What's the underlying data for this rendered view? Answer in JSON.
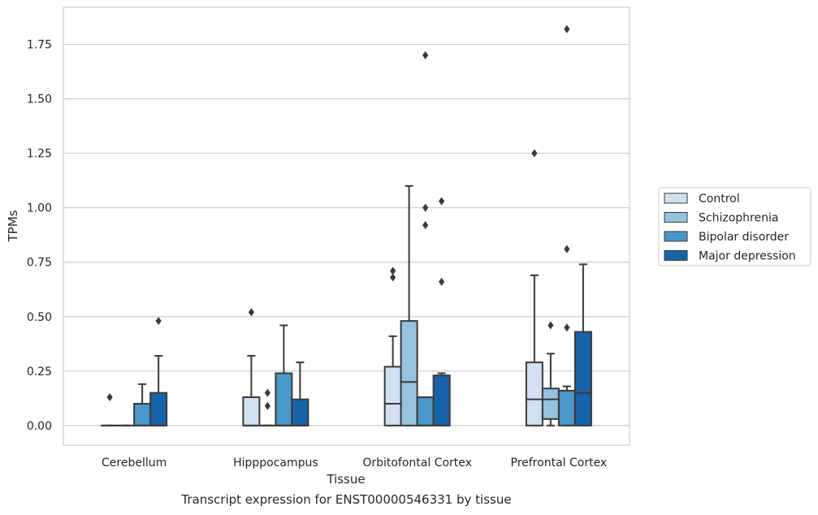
{
  "caption": "Transcript expression for ENST00000546331 by tissue",
  "chart_data": {
    "type": "box",
    "xlabel": "Tissue",
    "ylabel": "TPMs",
    "ylim": [
      -0.09,
      1.92
    ],
    "yticks": [
      "0.00",
      "0.25",
      "0.50",
      "0.75",
      "1.00",
      "1.25",
      "1.50",
      "1.75"
    ],
    "grid": "horizontal",
    "legend_position": "right",
    "categories": [
      "Cerebellum",
      "Hipppocampus",
      "Orbitofontal Cortex",
      "Prefrontal Cortex"
    ],
    "series": [
      {
        "name": "Control",
        "color": "#d0e1f2",
        "boxes": [
          {
            "q1": 0.0,
            "median": 0.0,
            "q3": 0.0,
            "whisker_low": 0.0,
            "whisker_high": 0.0,
            "outliers": [
              0.13
            ]
          },
          {
            "q1": 0.0,
            "median": 0.0,
            "q3": 0.13,
            "whisker_low": 0.0,
            "whisker_high": 0.32,
            "outliers": [
              0.52
            ]
          },
          {
            "q1": 0.0,
            "median": 0.1,
            "q3": 0.27,
            "whisker_low": 0.0,
            "whisker_high": 0.41,
            "outliers": [
              0.68,
              0.71
            ]
          },
          {
            "q1": 0.0,
            "median": 0.12,
            "q3": 0.29,
            "whisker_low": 0.0,
            "whisker_high": 0.69,
            "outliers": [
              1.25
            ]
          }
        ]
      },
      {
        "name": "Schizophrenia",
        "color": "#94c4df",
        "boxes": [
          {
            "q1": 0.0,
            "median": 0.0,
            "q3": 0.0,
            "whisker_low": 0.0,
            "whisker_high": 0.0,
            "outliers": []
          },
          {
            "q1": 0.0,
            "median": 0.0,
            "q3": 0.0,
            "whisker_low": 0.0,
            "whisker_high": 0.0,
            "outliers": [
              0.09,
              0.15
            ]
          },
          {
            "q1": 0.0,
            "median": 0.2,
            "q3": 0.48,
            "whisker_low": 0.0,
            "whisker_high": 1.1,
            "outliers": []
          },
          {
            "q1": 0.03,
            "median": 0.12,
            "q3": 0.17,
            "whisker_low": 0.0,
            "whisker_high": 0.33,
            "outliers": [
              0.46
            ]
          }
        ]
      },
      {
        "name": "Bipolar disorder",
        "color": "#4a98c9",
        "boxes": [
          {
            "q1": 0.0,
            "median": 0.0,
            "q3": 0.1,
            "whisker_low": 0.0,
            "whisker_high": 0.19,
            "outliers": []
          },
          {
            "q1": 0.0,
            "median": 0.0,
            "q3": 0.24,
            "whisker_low": 0.0,
            "whisker_high": 0.46,
            "outliers": []
          },
          {
            "q1": 0.0,
            "median": 0.0,
            "q3": 0.13,
            "whisker_low": 0.0,
            "whisker_high": 0.13,
            "outliers": [
              0.92,
              1.0,
              1.7
            ]
          },
          {
            "q1": 0.0,
            "median": 0.16,
            "q3": 0.16,
            "whisker_low": 0.0,
            "whisker_high": 0.18,
            "outliers": [
              0.45,
              0.81,
              1.82
            ]
          }
        ]
      },
      {
        "name": "Major depression",
        "color": "#1764ab",
        "boxes": [
          {
            "q1": 0.0,
            "median": 0.0,
            "q3": 0.15,
            "whisker_low": 0.0,
            "whisker_high": 0.32,
            "outliers": [
              0.48
            ]
          },
          {
            "q1": 0.0,
            "median": 0.0,
            "q3": 0.12,
            "whisker_low": 0.0,
            "whisker_high": 0.29,
            "outliers": []
          },
          {
            "q1": 0.0,
            "median": 0.0,
            "q3": 0.23,
            "whisker_low": 0.0,
            "whisker_high": 0.24,
            "outliers": [
              0.66,
              1.03
            ]
          },
          {
            "q1": 0.0,
            "median": 0.15,
            "q3": 0.43,
            "whisker_low": 0.0,
            "whisker_high": 0.74,
            "outliers": []
          }
        ]
      }
    ]
  }
}
